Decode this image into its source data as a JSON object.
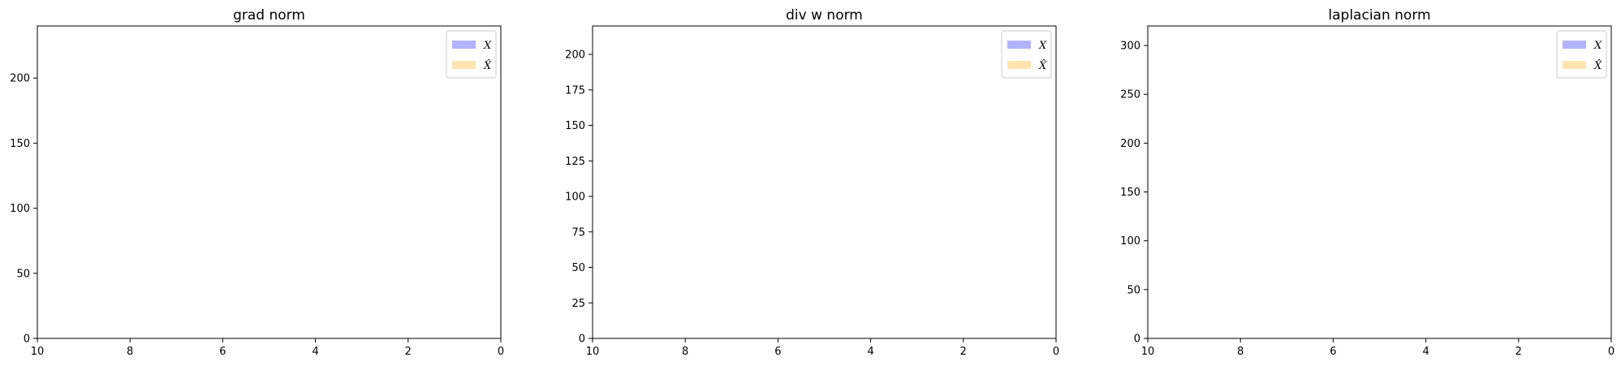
{
  "chart_data": [
    {
      "type": "bar",
      "title": "grad norm",
      "xlabel": "",
      "ylabel": "",
      "xlim": [
        10,
        0
      ],
      "ylim": [
        0,
        240
      ],
      "x_ticks": [
        "10",
        "8",
        "6",
        "4",
        "2",
        "0"
      ],
      "y_ticks": [
        "0",
        "50",
        "100",
        "150",
        "200"
      ],
      "grid": false,
      "legend_position": "top-right",
      "series": [
        {
          "name": "X",
          "color": "#0000ff",
          "alpha": 0.3,
          "values": []
        },
        {
          "name": "X̂",
          "color": "#ffa500",
          "alpha": 0.3,
          "values": []
        }
      ]
    },
    {
      "type": "bar",
      "title": "div w norm",
      "xlabel": "",
      "ylabel": "",
      "xlim": [
        10,
        0
      ],
      "ylim": [
        0,
        220
      ],
      "x_ticks": [
        "10",
        "8",
        "6",
        "4",
        "2",
        "0"
      ],
      "y_ticks": [
        "0",
        "25",
        "50",
        "75",
        "100",
        "125",
        "150",
        "175",
        "200"
      ],
      "grid": false,
      "legend_position": "top-right",
      "series": [
        {
          "name": "X",
          "color": "#0000ff",
          "alpha": 0.3,
          "values": []
        },
        {
          "name": "X̂",
          "color": "#ffa500",
          "alpha": 0.3,
          "values": []
        }
      ]
    },
    {
      "type": "bar",
      "title": "laplacian norm",
      "xlabel": "",
      "ylabel": "",
      "xlim": [
        10,
        0
      ],
      "ylim": [
        0,
        320
      ],
      "x_ticks": [
        "10",
        "8",
        "6",
        "4",
        "2",
        "0"
      ],
      "y_ticks": [
        "0",
        "50",
        "100",
        "150",
        "200",
        "250",
        "300"
      ],
      "grid": false,
      "legend_position": "top-right",
      "series": [
        {
          "name": "X",
          "color": "#0000ff",
          "alpha": 0.3,
          "values": []
        },
        {
          "name": "X̂",
          "color": "#ffa500",
          "alpha": 0.3,
          "values": []
        }
      ]
    }
  ]
}
